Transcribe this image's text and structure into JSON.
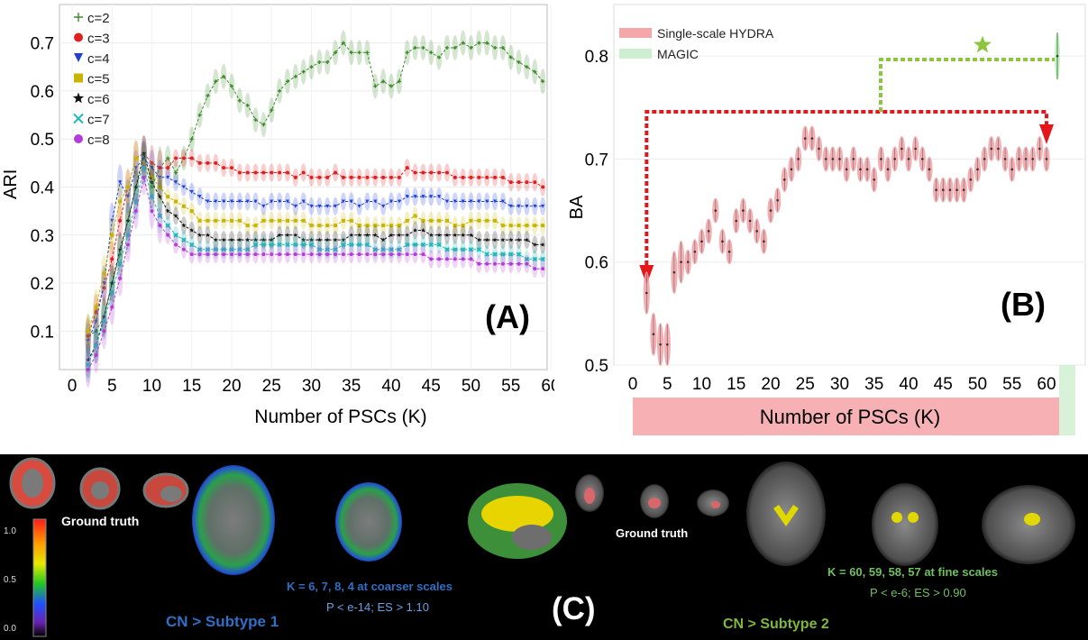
{
  "chart_data": [
    {
      "type": "line",
      "panel_label": "(A)",
      "xlabel": "Number of PSCs (K)",
      "ylabel": "ARI",
      "xlim": [
        0,
        60
      ],
      "ylim": [
        0.02,
        0.78
      ],
      "xticks": [
        "0",
        "5",
        "10",
        "15",
        "20",
        "25",
        "30",
        "35",
        "40",
        "45",
        "50",
        "55",
        "60"
      ],
      "yticks": [
        "0.1",
        "0.2",
        "0.3",
        "0.4",
        "0.5",
        "0.6",
        "0.7"
      ],
      "grid": true,
      "legend_position": "top-left",
      "x": [
        2,
        3,
        4,
        5,
        6,
        7,
        8,
        9,
        10,
        11,
        12,
        13,
        14,
        15,
        16,
        17,
        18,
        19,
        20,
        21,
        22,
        23,
        24,
        25,
        26,
        27,
        28,
        29,
        30,
        31,
        32,
        33,
        34,
        35,
        36,
        37,
        38,
        39,
        40,
        41,
        42,
        43,
        44,
        45,
        46,
        47,
        48,
        49,
        50,
        51,
        52,
        53,
        54,
        55,
        56,
        57,
        58,
        59
      ],
      "series": [
        {
          "name": "c=2",
          "color": "#3a8a2a",
          "marker": "plus",
          "values": [
            0.09,
            0.1,
            0.13,
            0.2,
            0.26,
            0.33,
            0.4,
            0.45,
            0.4,
            0.44,
            0.46,
            0.43,
            0.46,
            0.5,
            0.55,
            0.59,
            0.62,
            0.63,
            0.61,
            0.58,
            0.57,
            0.54,
            0.53,
            0.56,
            0.6,
            0.62,
            0.63,
            0.64,
            0.65,
            0.66,
            0.66,
            0.68,
            0.7,
            0.68,
            0.68,
            0.68,
            0.61,
            0.62,
            0.61,
            0.62,
            0.68,
            0.69,
            0.69,
            0.68,
            0.67,
            0.69,
            0.69,
            0.7,
            0.69,
            0.7,
            0.7,
            0.69,
            0.69,
            0.67,
            0.66,
            0.65,
            0.64,
            0.62
          ]
        },
        {
          "name": "c=3",
          "color": "#e02020",
          "marker": "circle",
          "values": [
            0.09,
            0.14,
            0.19,
            0.25,
            0.33,
            0.4,
            0.46,
            0.47,
            0.45,
            0.44,
            0.44,
            0.46,
            0.46,
            0.46,
            0.45,
            0.45,
            0.45,
            0.44,
            0.44,
            0.43,
            0.43,
            0.43,
            0.43,
            0.43,
            0.43,
            0.43,
            0.42,
            0.43,
            0.42,
            0.42,
            0.42,
            0.43,
            0.42,
            0.42,
            0.42,
            0.42,
            0.42,
            0.42,
            0.42,
            0.42,
            0.44,
            0.43,
            0.43,
            0.43,
            0.43,
            0.43,
            0.42,
            0.42,
            0.42,
            0.42,
            0.42,
            0.42,
            0.42,
            0.41,
            0.41,
            0.41,
            0.41,
            0.4
          ]
        },
        {
          "name": "c=4",
          "color": "#1e3fd8",
          "marker": "triangle",
          "values": [
            0.08,
            0.12,
            0.2,
            0.33,
            0.41,
            0.38,
            0.44,
            0.46,
            0.44,
            0.42,
            0.42,
            0.41,
            0.4,
            0.39,
            0.38,
            0.37,
            0.37,
            0.37,
            0.37,
            0.37,
            0.37,
            0.37,
            0.36,
            0.37,
            0.37,
            0.37,
            0.36,
            0.37,
            0.36,
            0.36,
            0.36,
            0.36,
            0.37,
            0.37,
            0.36,
            0.37,
            0.37,
            0.36,
            0.37,
            0.37,
            0.38,
            0.38,
            0.38,
            0.38,
            0.38,
            0.37,
            0.37,
            0.37,
            0.37,
            0.37,
            0.37,
            0.37,
            0.37,
            0.36,
            0.36,
            0.36,
            0.36,
            0.36
          ]
        },
        {
          "name": "c=5",
          "color": "#c8b400",
          "marker": "square",
          "values": [
            0.1,
            0.15,
            0.22,
            0.3,
            0.37,
            0.4,
            0.46,
            0.45,
            0.42,
            0.4,
            0.38,
            0.37,
            0.36,
            0.35,
            0.33,
            0.33,
            0.33,
            0.33,
            0.33,
            0.33,
            0.32,
            0.32,
            0.33,
            0.33,
            0.33,
            0.33,
            0.33,
            0.33,
            0.32,
            0.32,
            0.32,
            0.32,
            0.33,
            0.33,
            0.32,
            0.32,
            0.32,
            0.32,
            0.32,
            0.32,
            0.33,
            0.34,
            0.33,
            0.33,
            0.33,
            0.33,
            0.32,
            0.32,
            0.33,
            0.33,
            0.33,
            0.33,
            0.32,
            0.32,
            0.32,
            0.32,
            0.32,
            0.32
          ]
        },
        {
          "name": "c=6",
          "color": "#111111",
          "marker": "star",
          "values": [
            0.04,
            0.07,
            0.13,
            0.2,
            0.27,
            0.33,
            0.4,
            0.47,
            0.41,
            0.38,
            0.35,
            0.34,
            0.32,
            0.31,
            0.3,
            0.3,
            0.29,
            0.29,
            0.29,
            0.29,
            0.29,
            0.29,
            0.29,
            0.29,
            0.3,
            0.3,
            0.3,
            0.29,
            0.29,
            0.29,
            0.29,
            0.29,
            0.29,
            0.3,
            0.3,
            0.3,
            0.3,
            0.29,
            0.3,
            0.3,
            0.3,
            0.31,
            0.31,
            0.3,
            0.3,
            0.3,
            0.3,
            0.3,
            0.3,
            0.29,
            0.29,
            0.29,
            0.29,
            0.29,
            0.29,
            0.29,
            0.28,
            0.28
          ]
        },
        {
          "name": "c=7",
          "color": "#20b8b8",
          "marker": "x",
          "values": [
            0.03,
            0.07,
            0.12,
            0.18,
            0.24,
            0.3,
            0.37,
            0.44,
            0.38,
            0.34,
            0.32,
            0.3,
            0.29,
            0.28,
            0.27,
            0.27,
            0.27,
            0.27,
            0.27,
            0.27,
            0.27,
            0.28,
            0.28,
            0.28,
            0.28,
            0.28,
            0.28,
            0.28,
            0.28,
            0.27,
            0.27,
            0.27,
            0.28,
            0.28,
            0.28,
            0.28,
            0.27,
            0.27,
            0.27,
            0.27,
            0.28,
            0.28,
            0.28,
            0.28,
            0.28,
            0.27,
            0.27,
            0.27,
            0.27,
            0.27,
            0.26,
            0.26,
            0.26,
            0.26,
            0.26,
            0.25,
            0.25,
            0.25
          ]
        },
        {
          "name": "c=8",
          "color": "#b43cd8",
          "marker": "circle",
          "values": [
            0.02,
            0.05,
            0.1,
            0.15,
            0.21,
            0.28,
            0.35,
            0.42,
            0.35,
            0.32,
            0.3,
            0.28,
            0.27,
            0.26,
            0.26,
            0.26,
            0.26,
            0.26,
            0.26,
            0.26,
            0.26,
            0.26,
            0.26,
            0.26,
            0.26,
            0.26,
            0.26,
            0.26,
            0.26,
            0.26,
            0.26,
            0.26,
            0.26,
            0.26,
            0.26,
            0.26,
            0.26,
            0.26,
            0.26,
            0.26,
            0.26,
            0.26,
            0.26,
            0.25,
            0.25,
            0.25,
            0.25,
            0.25,
            0.25,
            0.24,
            0.24,
            0.24,
            0.24,
            0.24,
            0.24,
            0.24,
            0.23,
            0.23
          ]
        }
      ]
    },
    {
      "type": "violin",
      "panel_label": "(B)",
      "xlabel": "Number of PSCs (K)",
      "ylabel": "BA",
      "xlim": [
        -1,
        65
      ],
      "ylim": [
        0.5,
        0.85
      ],
      "xticks": [
        "0",
        "5",
        "10",
        "15",
        "20",
        "25",
        "30",
        "35",
        "40",
        "45",
        "50",
        "55",
        "60"
      ],
      "yticks": [
        "0.5",
        "0.6",
        "0.7",
        "0.8"
      ],
      "grid": true,
      "legend_position": "top-left",
      "legend": [
        {
          "name": "Single-scale HYDRA",
          "color": "#f4a6a8"
        },
        {
          "name": "MAGIC",
          "color": "#cdeed0"
        }
      ],
      "series": [
        {
          "name": "Single-scale HYDRA",
          "color": "#ef8f93",
          "x": [
            2,
            3,
            4,
            5,
            6,
            7,
            8,
            9,
            10,
            11,
            12,
            13,
            14,
            15,
            16,
            17,
            18,
            19,
            20,
            21,
            22,
            23,
            24,
            25,
            26,
            27,
            28,
            29,
            30,
            31,
            32,
            33,
            34,
            35,
            36,
            37,
            38,
            39,
            40,
            41,
            42,
            43,
            44,
            45,
            46,
            47,
            48,
            49,
            50,
            51,
            52,
            53,
            54,
            55,
            56,
            57,
            58,
            59,
            60
          ],
          "values": [
            0.57,
            0.53,
            0.52,
            0.52,
            0.59,
            0.6,
            0.6,
            0.61,
            0.62,
            0.63,
            0.65,
            0.62,
            0.61,
            0.64,
            0.65,
            0.64,
            0.63,
            0.62,
            0.65,
            0.66,
            0.68,
            0.69,
            0.7,
            0.72,
            0.72,
            0.71,
            0.7,
            0.7,
            0.7,
            0.69,
            0.7,
            0.69,
            0.69,
            0.68,
            0.7,
            0.69,
            0.7,
            0.71,
            0.7,
            0.71,
            0.7,
            0.69,
            0.67,
            0.67,
            0.67,
            0.67,
            0.67,
            0.68,
            0.69,
            0.7,
            0.71,
            0.71,
            0.7,
            0.69,
            0.7,
            0.7,
            0.7,
            0.71,
            0.7
          ]
        },
        {
          "name": "MAGIC",
          "color": "#3a8a2a",
          "x": [
            61
          ],
          "values": [
            0.8
          ]
        }
      ],
      "annotations": {
        "star_marker": "green star above MAGIC",
        "arrows": "red dotted arrows marking K=2 and K=60; green dotted bracket to MAGIC"
      }
    }
  ],
  "panel_c": {
    "label": "(C)",
    "colorbar_ticks": [
      "1.0",
      "0.5",
      "0.0"
    ],
    "ground_truth_left": "Ground truth",
    "ground_truth_right": "Ground truth",
    "subtype1_title": "CN > Subtype 1",
    "subtype1_scales": "K = 6, 7, 8, 4 at coarser scales",
    "subtype1_stats": "P < e-14; ES > 1.10",
    "subtype2_title": "CN > Subtype 2",
    "subtype2_scales": "K = 60, 59, 58, 57 at fine scales",
    "subtype2_stats": "P < e-6; ES > 0.90",
    "colors": {
      "subtype1": "#2f6fc4",
      "subtype2": "#7fb83a",
      "stats1": "#6aa0e0",
      "stats2": "#6fc060"
    }
  }
}
